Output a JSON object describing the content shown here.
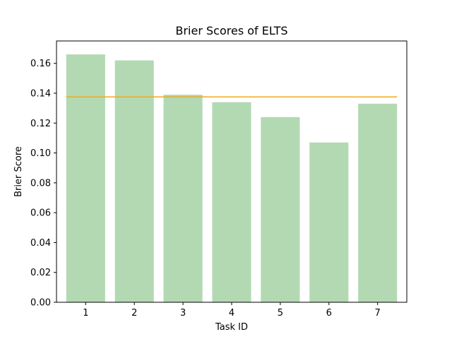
{
  "chart_data": {
    "type": "bar",
    "title": "Brier Scores of ELTS",
    "xlabel": "Task ID",
    "ylabel": "Brier Score",
    "categories": [
      "1",
      "2",
      "3",
      "4",
      "5",
      "6",
      "7"
    ],
    "values": [
      0.166,
      0.162,
      0.139,
      0.134,
      0.124,
      0.107,
      0.133
    ],
    "mean_line": 0.1375,
    "ylim": [
      0,
      0.175
    ],
    "yticks": [
      "0.00",
      "0.02",
      "0.04",
      "0.06",
      "0.08",
      "0.10",
      "0.12",
      "0.14",
      "0.16"
    ],
    "grid": false,
    "bar_color": "#b3d9b3",
    "line_color": "#f0a81c"
  }
}
